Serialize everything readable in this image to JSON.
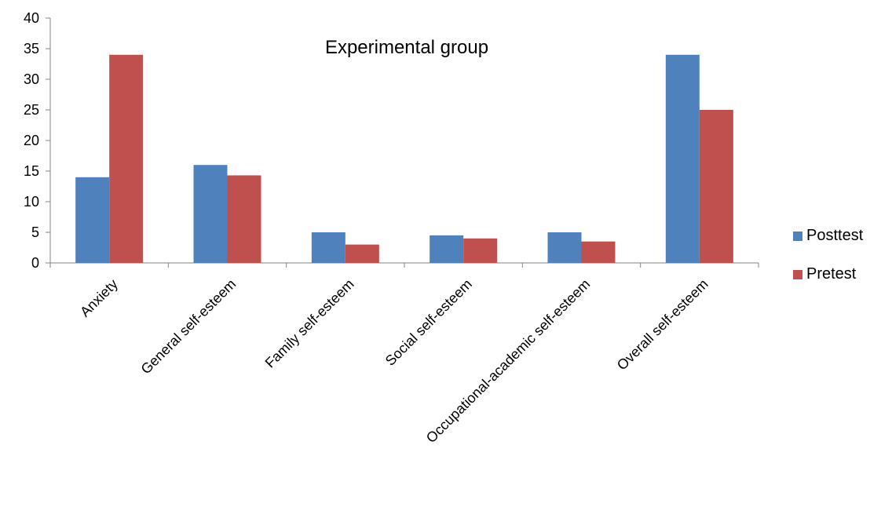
{
  "chart_data": {
    "type": "bar",
    "title": "Experimental group",
    "categories": [
      "Anxiety",
      "General self-esteem",
      "Family self-esteem",
      "Social self-esteem",
      "Occupational-academic self-esteem",
      "Overall self-esteem"
    ],
    "series": [
      {
        "name": "Posttest",
        "color": "#4F81BD",
        "values": [
          14,
          16,
          5,
          4.5,
          5,
          34
        ]
      },
      {
        "name": "Pretest",
        "color": "#C0504D",
        "values": [
          34,
          14.3,
          3,
          4,
          3.5,
          25
        ]
      }
    ],
    "ylim": [
      0,
      40
    ],
    "yticks": [
      0,
      5,
      10,
      15,
      20,
      25,
      30,
      35,
      40
    ],
    "grid": false,
    "legend_position": "right"
  }
}
